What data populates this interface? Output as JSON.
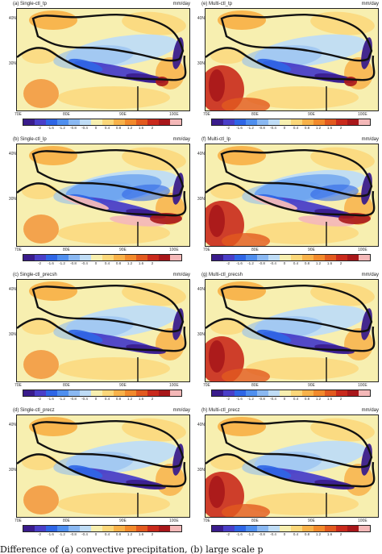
{
  "panels": [
    {
      "id": "a",
      "title": "(a) Single-ctl_tp",
      "unit": "mm/day"
    },
    {
      "id": "e",
      "title": "(e) Multi-ctl_tp",
      "unit": "mm/day"
    },
    {
      "id": "b",
      "title": "(b) Single-ctl_lp",
      "unit": "mm/day"
    },
    {
      "id": "f",
      "title": "(f) Multi-ctl_lp",
      "unit": "mm/day"
    },
    {
      "id": "c",
      "title": "(c) Single-ctl_precsh",
      "unit": "mm/day"
    },
    {
      "id": "g",
      "title": "(g) Multi-ctl_precsh",
      "unit": "mm/day"
    },
    {
      "id": "d",
      "title": "(d) Single-ctl_precz",
      "unit": "mm/day"
    },
    {
      "id": "h",
      "title": "(h) Multi-ctl_precz",
      "unit": "mm/day"
    }
  ],
  "axes": {
    "lat_labels": [
      "40N",
      "30N"
    ],
    "lon_labels": [
      "70E",
      "80E",
      "90E",
      "100E"
    ]
  },
  "colorbar": {
    "tick_labels": [
      "-2",
      "-1.6",
      "-1.2",
      "-0.8",
      "-0.4",
      "0",
      "0.4",
      "0.8",
      "1.2",
      "1.6",
      "2"
    ],
    "colors": [
      "#3a1c8c",
      "#4a3fc8",
      "#2f66e6",
      "#4f8fef",
      "#8ab8f2",
      "#bfdcf5",
      "#f7efb0",
      "#fbd77a",
      "#f8b24a",
      "#f28a2c",
      "#e25a1f",
      "#c92a1c",
      "#a8171a",
      "#f4b8b8"
    ]
  },
  "caption": "Difference of (a) convective precipitation, (b) large scale p"
}
